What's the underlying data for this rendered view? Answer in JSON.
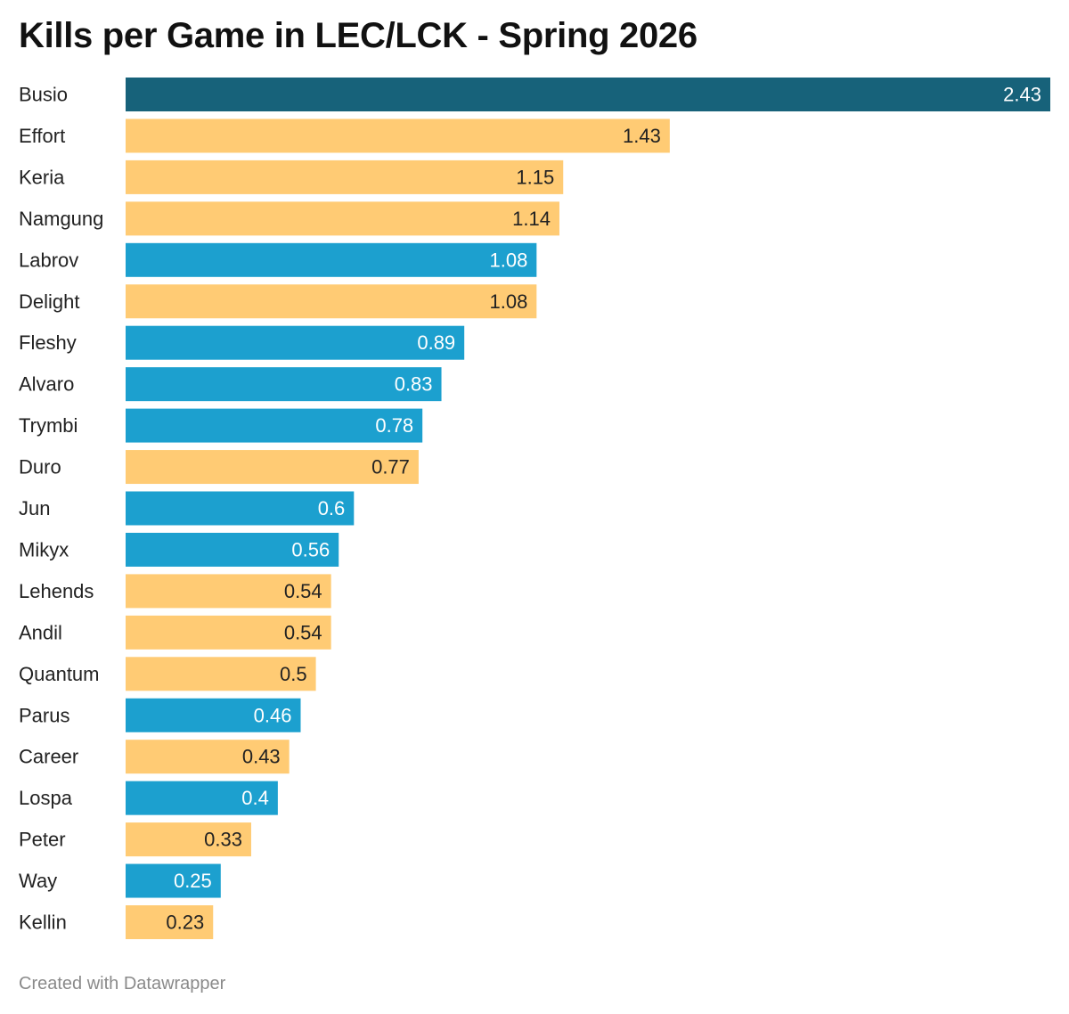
{
  "chart_data": {
    "type": "bar",
    "orientation": "horizontal",
    "title": "Kills per Game in LEC/LCK - Spring 2026",
    "xlabel": "",
    "ylabel": "",
    "xlim": [
      0,
      2.43
    ],
    "grid": false,
    "legend": "none",
    "colors": {
      "highlight": "#17627a",
      "blue": "#1ca0cf",
      "orange": "#ffcb74",
      "label_dark": "#222222",
      "label_light": "#ffffff"
    },
    "categories": [
      "Busio",
      "Effort",
      "Keria",
      "Namgung",
      "Labrov",
      "Delight",
      "Fleshy",
      "Alvaro",
      "Trymbi",
      "Duro",
      "Jun",
      "Mikyx",
      "Lehends",
      "Andil",
      "Quantum",
      "Parus",
      "Career",
      "Lospa",
      "Peter",
      "Way",
      "Kellin"
    ],
    "values": [
      2.43,
      1.43,
      1.15,
      1.14,
      1.08,
      1.08,
      0.89,
      0.83,
      0.78,
      0.77,
      0.6,
      0.56,
      0.54,
      0.54,
      0.5,
      0.46,
      0.43,
      0.4,
      0.33,
      0.25,
      0.23
    ],
    "value_labels": [
      "2.43",
      "1.43",
      "1.15",
      "1.14",
      "1.08",
      "1.08",
      "0.89",
      "0.83",
      "0.78",
      "0.77",
      "0.6",
      "0.56",
      "0.54",
      "0.54",
      "0.5",
      "0.46",
      "0.43",
      "0.4",
      "0.33",
      "0.25",
      "0.23"
    ],
    "bar_colors": [
      "highlight",
      "orange",
      "orange",
      "orange",
      "blue",
      "orange",
      "blue",
      "blue",
      "blue",
      "orange",
      "blue",
      "blue",
      "orange",
      "orange",
      "orange",
      "blue",
      "orange",
      "blue",
      "orange",
      "blue",
      "orange"
    ]
  },
  "footer": {
    "credit": "Created with Datawrapper"
  }
}
